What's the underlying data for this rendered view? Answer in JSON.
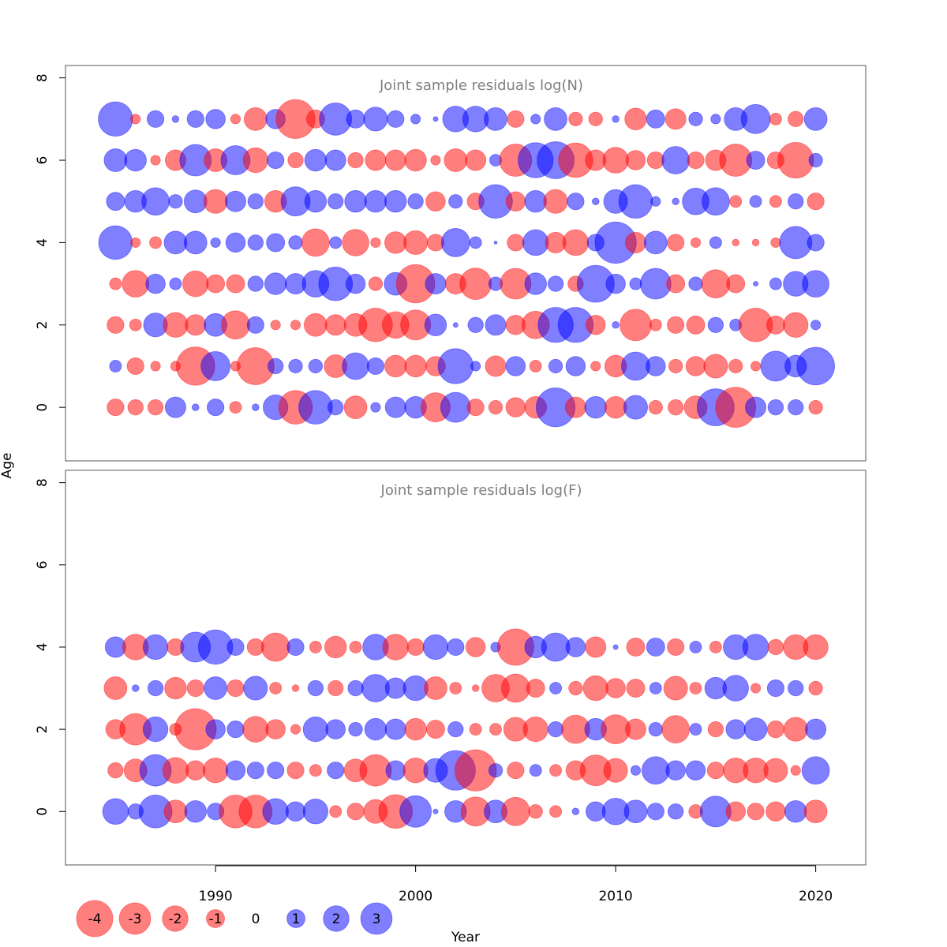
{
  "chart_data": {
    "type": "scatter",
    "subtype": "bubble",
    "xlabel": "Year",
    "ylabel": "Age",
    "colors": {
      "positive": "#0000ff",
      "negative": "#ff0000",
      "alpha": 0.5
    },
    "xlim": [
      1982.5,
      2022.5
    ],
    "x_ticks": [
      1990,
      2000,
      2010,
      2020
    ],
    "years": [
      1985,
      1986,
      1987,
      1988,
      1989,
      1990,
      1991,
      1992,
      1993,
      1994,
      1995,
      1996,
      1997,
      1998,
      1999,
      2000,
      2001,
      2002,
      2003,
      2004,
      2005,
      2006,
      2007,
      2008,
      2009,
      2010,
      2011,
      2012,
      2013,
      2014,
      2015,
      2016,
      2017,
      2018,
      2019,
      2020
    ],
    "legend": {
      "values": [
        -4,
        -3,
        -2,
        -1,
        0,
        1,
        2,
        3
      ],
      "labels": [
        "-4",
        "-3",
        "-2",
        "-1",
        "0",
        "1",
        "2",
        "3"
      ]
    },
    "panels": [
      {
        "title": "Joint sample residuals log(N)",
        "ylim": [
          -1.3,
          8.3
        ],
        "y_ticks": [
          0,
          2,
          4,
          6,
          8
        ],
        "ages": [
          0,
          1,
          2,
          3,
          4,
          5,
          6,
          7
        ],
        "residuals": [
          [
            -0.6,
            -0.5,
            -0.5,
            0.9,
            0.1,
            0.6,
            -0.3,
            0.1,
            1.3,
            -2.4,
            2.4,
            0.5,
            -1.1,
            0.2,
            0.9,
            1.0,
            -1.8,
            1.9,
            -0.6,
            -0.4,
            -0.8,
            -1.0,
            3.2,
            -0.9,
            1.0,
            -1.0,
            1.2,
            -0.4,
            -0.5,
            -1.1,
            2.9,
            -3.4,
            0.9,
            0.5,
            0.5,
            -0.4
          ],
          [
            0.3,
            -0.6,
            -0.2,
            -0.2,
            -3.1,
            1.8,
            -0.2,
            -2.9,
            0.5,
            0.4,
            0.4,
            -1.1,
            1.5,
            0.6,
            -1.0,
            -1.0,
            -0.8,
            2.6,
            0.2,
            -0.9,
            0.8,
            -0.3,
            0.4,
            0.8,
            -0.2,
            -1.0,
            1.7,
            0.8,
            -0.4,
            -0.8,
            -1.2,
            -0.4,
            -0.2,
            1.9,
            1.0,
            3.0
          ],
          [
            -0.6,
            -0.3,
            1.2,
            -1.3,
            -0.9,
            1.1,
            -1.7,
            0.6,
            -0.2,
            -0.2,
            -1.1,
            -0.9,
            -1.1,
            -2.4,
            -1.5,
            -1.9,
            1.0,
            0.05,
            0.5,
            0.9,
            -0.8,
            -1.6,
            2.6,
            2.6,
            -0.8,
            0.1,
            -2.1,
            -0.3,
            -0.6,
            -0.7,
            0.5,
            0.3,
            -2.4,
            -0.7,
            -1.3,
            0.2
          ],
          [
            -0.3,
            -1.5,
            0.8,
            0.3,
            -1.4,
            -0.7,
            -0.7,
            0.5,
            1.0,
            0.9,
            1.5,
            2.4,
            0.8,
            -0.4,
            1.1,
            -3.1,
            0.9,
            -0.9,
            -2.1,
            0.4,
            -2.0,
            1.0,
            0.5,
            -0.5,
            2.9,
            0.8,
            0.3,
            2.0,
            -0.7,
            0.4,
            -1.7,
            -0.7,
            0.05,
            0.3,
            1.3,
            1.5
          ],
          [
            2.4,
            -0.2,
            -0.3,
            1.1,
            1.1,
            0.2,
            0.8,
            0.5,
            0.7,
            0.4,
            -1.6,
            0.3,
            -1.5,
            -0.2,
            -1.0,
            -1.2,
            -0.6,
            1.7,
            0.3,
            0.02,
            -0.6,
            1.4,
            -0.9,
            -1.4,
            0.6,
            3.6,
            -0.9,
            1.1,
            -0.6,
            -0.2,
            0.3,
            -0.1,
            -0.1,
            -0.2,
            2.2,
            0.6
          ],
          [
            0.7,
            1.0,
            1.6,
            0.4,
            1.1,
            -1.2,
            0.9,
            0.5,
            -1.0,
            1.8,
            1.0,
            0.5,
            1.0,
            1.0,
            1.0,
            0.5,
            -0.8,
            0.4,
            -0.6,
            2.4,
            -0.8,
            1.0,
            -1.2,
            0.6,
            0.1,
            1.2,
            2.4,
            0.2,
            0.1,
            1.5,
            1.6,
            -0.3,
            0.3,
            -0.3,
            0.5,
            -0.6
          ],
          [
            1.1,
            1.0,
            -0.2,
            -0.9,
            2.1,
            -1.1,
            1.8,
            -1.3,
            0.6,
            -0.5,
            1.0,
            0.9,
            -0.5,
            -0.9,
            -0.9,
            -1.0,
            -0.2,
            -1.1,
            -0.9,
            0.3,
            -2.2,
            2.6,
            2.9,
            -2.5,
            -0.9,
            -1.4,
            -0.8,
            -0.6,
            1.6,
            -0.6,
            -0.9,
            -2.2,
            0.7,
            -0.6,
            -2.7,
            0.4
          ],
          [
            2.5,
            -0.2,
            0.6,
            0.1,
            0.6,
            0.8,
            -0.2,
            -1.1,
            0.8,
            -3.2,
            -0.7,
            2.2,
            0.7,
            1.2,
            0.6,
            0.2,
            0.05,
            1.4,
            1.4,
            1.1,
            -0.6,
            0.2,
            1.1,
            -0.4,
            -0.4,
            0.1,
            -1.0,
            0.7,
            -0.9,
            0.4,
            0.2,
            1.1,
            1.8,
            -0.3,
            -0.5,
            1.1
          ]
        ]
      },
      {
        "title": "Joint sample residuals log(F)",
        "ylim": [
          -1.3,
          8.3
        ],
        "y_ticks": [
          0,
          2,
          4,
          6,
          8
        ],
        "ages": [
          0,
          1,
          2,
          3,
          4
        ],
        "residuals": [
          [
            1.4,
            0.5,
            2.3,
            -1.1,
            1.0,
            0.6,
            -2.3,
            -2.3,
            1.4,
            0.8,
            1.3,
            -0.3,
            -0.6,
            -1.2,
            -2.4,
            2.1,
            0.05,
            1.0,
            -1.8,
            1.1,
            -1.7,
            -0.4,
            -0.3,
            0.1,
            0.8,
            1.5,
            1.1,
            0.6,
            0.5,
            -0.4,
            2.0,
            -0.8,
            -0.6,
            -0.8,
            1.0,
            -1.1
          ],
          [
            -0.5,
            -1.1,
            2.1,
            -1.4,
            -0.8,
            -1.3,
            0.8,
            0.6,
            0.6,
            -0.6,
            -0.3,
            0.6,
            -1.1,
            -2.1,
            0.8,
            -1.3,
            1.2,
            3.3,
            -3.6,
            0.4,
            -0.6,
            0.3,
            -0.3,
            -0.8,
            -2.0,
            -1.2,
            0.2,
            1.6,
            0.8,
            0.8,
            -0.6,
            -1.3,
            -1.3,
            -1.2,
            -0.2,
            1.6
          ],
          [
            -0.8,
            -2.1,
            1.3,
            -0.3,
            -3.6,
            0.8,
            0.6,
            -1.4,
            -0.8,
            -0.2,
            1.3,
            0.8,
            0.4,
            1.0,
            0.9,
            -1.0,
            -0.7,
            0.5,
            -0.3,
            -0.3,
            -1.2,
            -1.3,
            0.5,
            -1.7,
            1.0,
            -1.8,
            -0.9,
            0.4,
            -1.6,
            0.3,
            -0.5,
            0.8,
            1.1,
            -0.6,
            -1.2,
            0.9
          ],
          [
            -1.1,
            0.1,
            0.5,
            -1.0,
            -0.6,
            1.1,
            -0.6,
            1.2,
            -0.3,
            -0.1,
            0.5,
            -0.5,
            0.5,
            1.6,
            0.9,
            1.3,
            -1.1,
            -0.3,
            -0.1,
            -1.6,
            -1.7,
            -0.7,
            0.3,
            -0.4,
            -1.3,
            -0.8,
            -0.7,
            0.3,
            -1.2,
            -0.3,
            1.0,
            1.4,
            -0.2,
            0.6,
            0.5,
            -0.4
          ],
          [
            0.9,
            -1.4,
            1.3,
            -0.6,
            1.9,
            2.5,
            0.6,
            -0.6,
            -1.7,
            0.6,
            -0.3,
            -1.0,
            -0.3,
            1.4,
            -1.4,
            -0.6,
            1.3,
            0.6,
            -0.8,
            0.2,
            -2.8,
            1.0,
            1.7,
            0.8,
            -0.9,
            0.05,
            -0.7,
            0.7,
            -0.6,
            0.3,
            -0.3,
            1.3,
            1.4,
            -0.5,
            -1.3,
            -1.3
          ]
        ]
      }
    ]
  }
}
